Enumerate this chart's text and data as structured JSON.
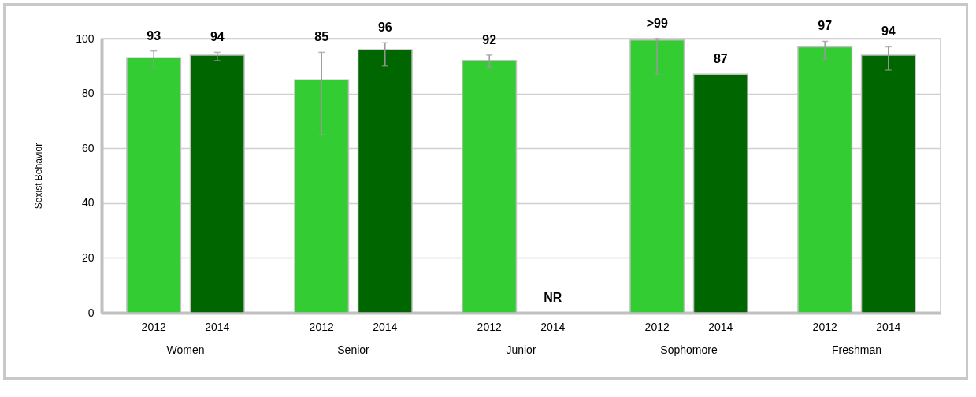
{
  "chart_data": {
    "type": "bar",
    "ylabel": "Sexist Behavior",
    "categories": [
      "Women",
      "Senior",
      "Junior",
      "Sophomore",
      "Freshman"
    ],
    "series": [
      {
        "name": "2012",
        "color": "#33cc33",
        "values": [
          93,
          85,
          92,
          99.5,
          97
        ],
        "errors": [
          [
            89,
            95.5
          ],
          [
            65,
            95
          ],
          [
            89.5,
            94
          ],
          [
            87,
            100
          ],
          [
            92.5,
            99
          ]
        ],
        "value_labels": [
          "93",
          "85",
          "92",
          ">99",
          "97"
        ]
      },
      {
        "name": "2014",
        "color": "#006600",
        "values": [
          94,
          96,
          null,
          87,
          94
        ],
        "errors": [
          [
            92,
            95
          ],
          [
            90,
            98.5
          ],
          null,
          null,
          [
            88.5,
            97
          ]
        ],
        "value_labels": [
          "94",
          "96",
          "NR",
          "87",
          "94"
        ]
      }
    ],
    "ylim": [
      0,
      100
    ],
    "yticks": [
      0,
      20,
      40,
      60,
      80,
      100
    ],
    "grid": "y"
  }
}
